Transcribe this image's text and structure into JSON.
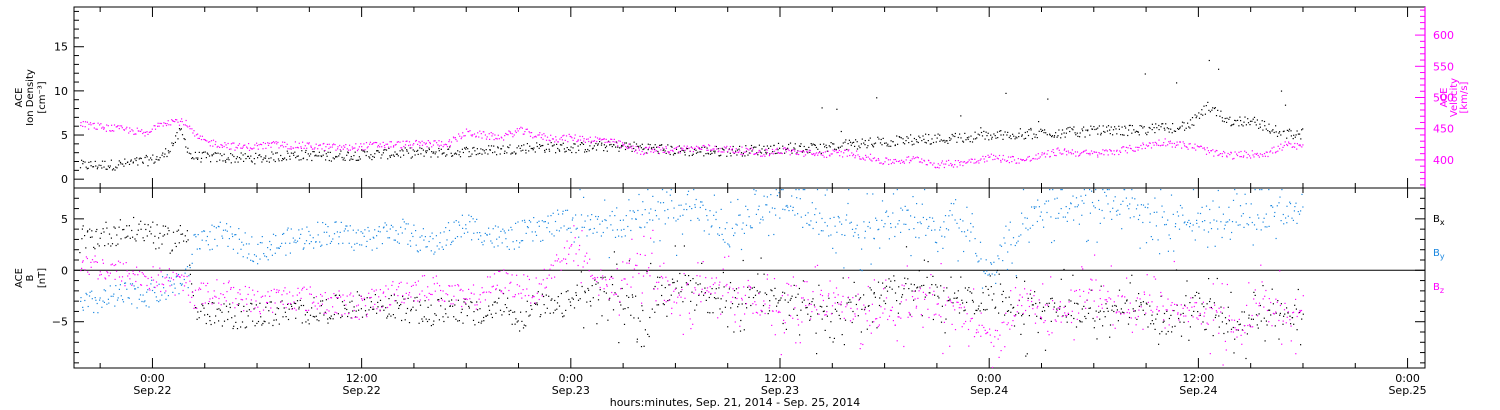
{
  "colors": {
    "black": "#000000",
    "magenta": "#ff00ff",
    "blue": "#1a87e0"
  },
  "footer": "hours:minutes, Sep. 21, 2014 - Sep. 25, 2014",
  "x_ticks": [
    {
      "t": 0,
      "time": "0:00",
      "date": "Sep.22"
    },
    {
      "t": 12,
      "time": "12:00",
      "date": "Sep.22"
    },
    {
      "t": 24,
      "time": "0:00",
      "date": "Sep.23"
    },
    {
      "t": 36,
      "time": "12:00",
      "date": "Sep.23"
    },
    {
      "t": 48,
      "time": "0:00",
      "date": "Sep.24"
    },
    {
      "t": 60,
      "time": "12:00",
      "date": "Sep.24"
    },
    {
      "t": 72,
      "time": "0:00",
      "date": "Sep.25"
    }
  ],
  "chart_data": [
    {
      "type": "scatter",
      "panel": "top",
      "xlim": [
        -4.5,
        73
      ],
      "data_end": 66,
      "left_axis": {
        "title_lines": [
          "ACE",
          "Ion Density",
          "[cm⁻³]"
        ],
        "ylim": [
          -1,
          19.5
        ],
        "ticks": [
          0,
          5,
          10,
          15
        ]
      },
      "right_axis": {
        "title_lines": [
          "ACE",
          "Velocity",
          "[km/s]"
        ],
        "ylim": [
          355,
          645
        ],
        "ticks": [
          400,
          450,
          500,
          550,
          600
        ],
        "color": "#ff00ff"
      },
      "series": [
        {
          "color": "black",
          "axis": "left",
          "points": [
            [
              -4.2,
              1.6
            ],
            [
              -2,
              1.7
            ],
            [
              -0.8,
              2.0
            ],
            [
              0,
              2.3
            ],
            [
              0.5,
              2.5
            ],
            [
              1.2,
              4.2
            ],
            [
              1.6,
              5.5
            ],
            [
              2.2,
              2.6
            ],
            [
              4,
              2.5
            ],
            [
              6,
              2.4
            ],
            [
              8,
              2.8
            ],
            [
              10,
              2.7
            ],
            [
              12,
              2.8
            ],
            [
              14,
              3.0
            ],
            [
              16,
              3.1
            ],
            [
              18,
              3.2
            ],
            [
              20,
              3.4
            ],
            [
              22,
              3.7
            ],
            [
              24,
              3.6
            ],
            [
              26,
              3.8
            ],
            [
              28,
              3.7
            ],
            [
              30,
              3.3
            ],
            [
              32,
              3.2
            ],
            [
              34,
              3.3
            ],
            [
              36,
              3.6
            ],
            [
              38,
              3.5
            ],
            [
              40,
              4.0
            ],
            [
              42,
              4.3
            ],
            [
              44,
              4.6
            ],
            [
              46,
              4.7
            ],
            [
              48,
              5.0
            ],
            [
              50,
              5.2
            ],
            [
              52,
              5.3
            ],
            [
              54,
              5.5
            ],
            [
              56,
              5.6
            ],
            [
              58,
              5.8
            ],
            [
              59.5,
              6.2
            ],
            [
              60.5,
              8.2
            ],
            [
              61,
              7.5
            ],
            [
              62,
              6.5
            ],
            [
              63,
              6.8
            ],
            [
              64,
              5.8
            ],
            [
              65,
              5.2
            ],
            [
              66,
              5.2
            ]
          ]
        },
        {
          "color": "magenta",
          "axis": "right",
          "points": [
            [
              -4.2,
              458
            ],
            [
              -2.5,
              452
            ],
            [
              -1,
              447
            ],
            [
              -0.3,
              441
            ],
            [
              0.3,
              460
            ],
            [
              1,
              463
            ],
            [
              1.8,
              462
            ],
            [
              2.4,
              440
            ],
            [
              3,
              430
            ],
            [
              5,
              421
            ],
            [
              7,
              425
            ],
            [
              9,
              423
            ],
            [
              11,
              420
            ],
            [
              13,
              425
            ],
            [
              15,
              426
            ],
            [
              17,
              428
            ],
            [
              18,
              445
            ],
            [
              19,
              440
            ],
            [
              20,
              437
            ],
            [
              21,
              448
            ],
            [
              22,
              440
            ],
            [
              23,
              435
            ],
            [
              24,
              436
            ],
            [
              26,
              432
            ],
            [
              28,
              415
            ],
            [
              30,
              418
            ],
            [
              32,
              420
            ],
            [
              34,
              415
            ],
            [
              35,
              412
            ],
            [
              36,
              416
            ],
            [
              38,
              410
            ],
            [
              40,
              412
            ],
            [
              42,
              398
            ],
            [
              44,
              402
            ],
            [
              45,
              393
            ],
            [
              46,
              395
            ],
            [
              48,
              405
            ],
            [
              50,
              400
            ],
            [
              52,
              415
            ],
            [
              54,
              410
            ],
            [
              56,
              418
            ],
            [
              58,
              430
            ],
            [
              59,
              425
            ],
            [
              60,
              420
            ],
            [
              61,
              410
            ],
            [
              62,
              408
            ],
            [
              64,
              412
            ],
            [
              65,
              425
            ],
            [
              66,
              420
            ]
          ]
        }
      ]
    },
    {
      "type": "scatter",
      "panel": "bottom",
      "xlim": [
        -4.5,
        73
      ],
      "data_end": 66,
      "left_axis": {
        "title_lines": [
          "ACE",
          "B",
          "[nT]"
        ],
        "ylim": [
          -9.5,
          8
        ],
        "ticks": [
          -5,
          0,
          5
        ]
      },
      "zero_line": true,
      "legend": [
        {
          "label": "B",
          "sub": "x",
          "color": "black"
        },
        {
          "label": "B",
          "sub": "y",
          "color": "blue"
        },
        {
          "label": "B",
          "sub": "z",
          "color": "magenta"
        }
      ],
      "series": [
        {
          "name": "Bx",
          "color": "black",
          "points": [
            [
              -4.2,
              3.0
            ],
            [
              -2,
              3.8
            ],
            [
              0,
              4.0
            ],
            [
              0.2,
              3.2
            ],
            [
              1,
              3.0
            ],
            [
              2,
              3.5
            ],
            [
              2.4,
              -4
            ],
            [
              4,
              -4.5
            ],
            [
              6,
              -4.2
            ],
            [
              8,
              -4.0
            ],
            [
              10,
              -3.8
            ],
            [
              12,
              -3.2
            ],
            [
              14,
              -3.6
            ],
            [
              15,
              -3.8
            ],
            [
              16,
              -4.3
            ],
            [
              17,
              -3.5
            ],
            [
              18,
              -4.0
            ],
            [
              19,
              -4.5
            ],
            [
              20,
              -3.0
            ],
            [
              21,
              -4.8
            ],
            [
              22,
              -3.2
            ],
            [
              23,
              -3.8
            ],
            [
              24,
              -3.0
            ],
            [
              26,
              -1.5
            ],
            [
              28,
              -4.0
            ],
            [
              30,
              -1.0
            ],
            [
              32,
              -3.0
            ],
            [
              34,
              -2.5
            ],
            [
              36,
              -3.0
            ],
            [
              38,
              -4.0
            ],
            [
              40,
              -3.5
            ],
            [
              42,
              -2.0
            ],
            [
              44,
              -1.0
            ],
            [
              46,
              -3.0
            ],
            [
              48,
              -2.5
            ],
            [
              50,
              -4.0
            ],
            [
              52,
              -3.5
            ],
            [
              54,
              -4.5
            ],
            [
              56,
              -4.0
            ],
            [
              58,
              -5.0
            ],
            [
              60,
              -3.5
            ],
            [
              62,
              -5.5
            ],
            [
              64,
              -4.0
            ],
            [
              66,
              -4.5
            ]
          ]
        },
        {
          "name": "By",
          "color": "blue",
          "points": [
            [
              -4.2,
              -3.5
            ],
            [
              -2,
              -2.5
            ],
            [
              0,
              -2.2
            ],
            [
              1,
              -1.5
            ],
            [
              2,
              -0.8
            ],
            [
              2.4,
              3.0
            ],
            [
              4,
              3.5
            ],
            [
              6,
              2.0
            ],
            [
              8,
              3.0
            ],
            [
              10,
              3.8
            ],
            [
              12,
              3.0
            ],
            [
              14,
              4.0
            ],
            [
              16,
              2.5
            ],
            [
              18,
              4.5
            ],
            [
              20,
              3.0
            ],
            [
              22,
              4.0
            ],
            [
              24,
              5.0
            ],
            [
              25,
              4.5
            ],
            [
              27,
              4.5
            ],
            [
              29,
              6.0
            ],
            [
              31,
              6.2
            ],
            [
              33,
              3.5
            ],
            [
              35,
              6.2
            ],
            [
              37,
              6.0
            ],
            [
              39,
              4.5
            ],
            [
              41,
              3.5
            ],
            [
              43,
              5.5
            ],
            [
              45,
              4.0
            ],
            [
              46,
              6.0
            ],
            [
              48,
              0.0
            ],
            [
              50,
              5.0
            ],
            [
              52,
              6.0
            ],
            [
              54,
              6.5
            ],
            [
              56,
              6.0
            ],
            [
              58,
              5.5
            ],
            [
              60,
              5.0
            ],
            [
              62,
              5.0
            ],
            [
              64,
              5.5
            ],
            [
              66,
              6.0
            ]
          ]
        },
        {
          "name": "Bz",
          "color": "magenta",
          "points": [
            [
              -4.2,
              1.0
            ],
            [
              -2.5,
              0.0
            ],
            [
              -1,
              -0.5
            ],
            [
              0,
              -0.8
            ],
            [
              1,
              -1.0
            ],
            [
              2,
              -1.5
            ],
            [
              2.4,
              -2.5
            ],
            [
              4,
              -2.0
            ],
            [
              6,
              -3.0
            ],
            [
              8,
              -2.5
            ],
            [
              10,
              -3.0
            ],
            [
              12,
              -3.5
            ],
            [
              14,
              -2.0
            ],
            [
              16,
              -1.5
            ],
            [
              18,
              -3.0
            ],
            [
              20,
              -1.0
            ],
            [
              22,
              -2.0
            ],
            [
              24,
              2.5
            ],
            [
              26,
              -2.0
            ],
            [
              28,
              1.0
            ],
            [
              30,
              -3.0
            ],
            [
              32,
              -1.5
            ],
            [
              34,
              -2.5
            ],
            [
              36,
              -5.0
            ],
            [
              38,
              -3.0
            ],
            [
              40,
              -3.5
            ],
            [
              42,
              -4.5
            ],
            [
              44,
              -3.0
            ],
            [
              46,
              -4.0
            ],
            [
              48,
              -6.5
            ],
            [
              50,
              -3.0
            ],
            [
              52,
              -4.0
            ],
            [
              54,
              -2.0
            ],
            [
              56,
              -3.5
            ],
            [
              58,
              -2.5
            ],
            [
              60,
              -4.0
            ],
            [
              62,
              -5.5
            ],
            [
              64,
              -3.0
            ],
            [
              66,
              -5.0
            ]
          ]
        }
      ]
    }
  ]
}
